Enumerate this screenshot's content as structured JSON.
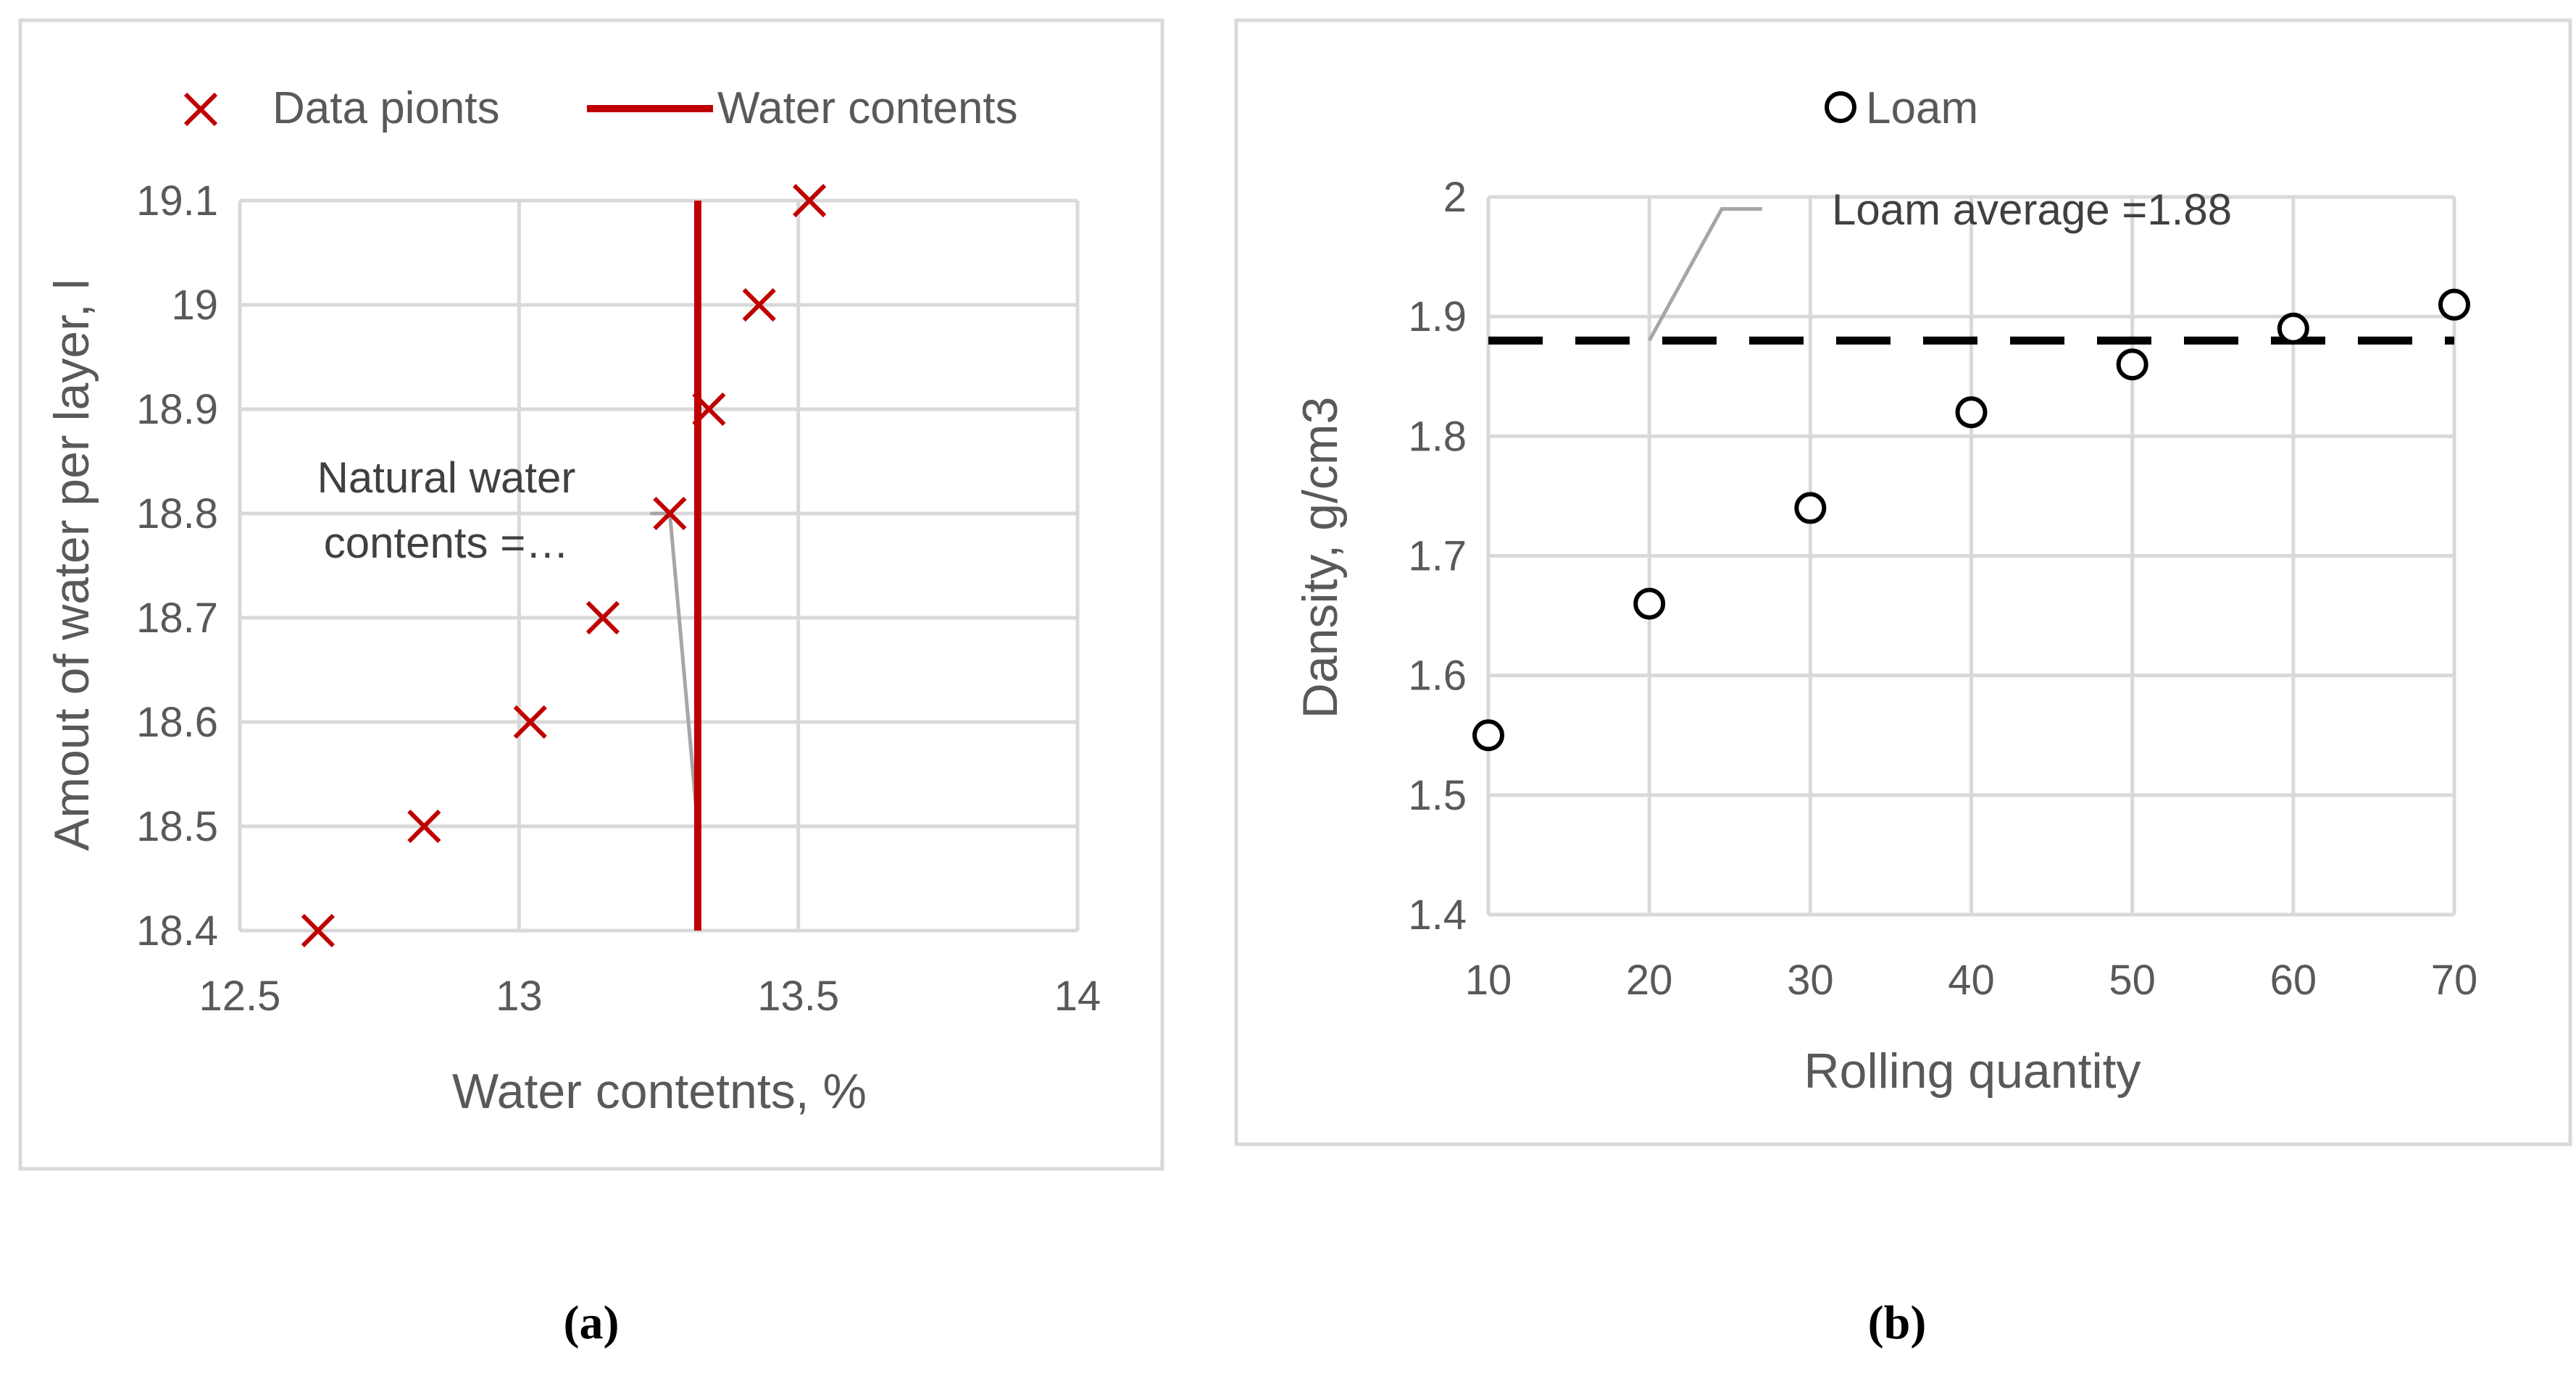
{
  "chart_data": [
    {
      "panel": "(a)",
      "type": "scatter",
      "xlabel": "Water contetnts, %",
      "ylabel": "Amout of water per layer, l",
      "xlim": [
        12.5,
        14
      ],
      "ylim": [
        18.4,
        19.1
      ],
      "x_ticks": [
        "12.5",
        "13",
        "13.5",
        "14"
      ],
      "y_ticks": [
        "18.4",
        "18.5",
        "18.6",
        "18.7",
        "18.8",
        "18.9",
        "19",
        "19.1"
      ],
      "grid": true,
      "legend_position": "top",
      "series": [
        {
          "name": "Data pionts",
          "marker": "x",
          "color": "#C00000",
          "x": [
            12.64,
            12.83,
            13.02,
            13.15,
            13.27,
            13.34,
            13.43,
            13.52
          ],
          "y": [
            18.4,
            18.5,
            18.6,
            18.7,
            18.8,
            18.9,
            19.0,
            19.1
          ]
        },
        {
          "name": "Water contents",
          "type": "vertical-line",
          "color": "#C00000",
          "x": 13.32
        }
      ],
      "annotation": {
        "line1": "Natural water",
        "line2": "contents =…"
      }
    },
    {
      "panel": "(b)",
      "type": "scatter",
      "xlabel": "Rolling quantity",
      "ylabel": "Dansity, g/cm3",
      "xlim": [
        10,
        70
      ],
      "ylim": [
        1.4,
        2
      ],
      "x_ticks": [
        "10",
        "20",
        "30",
        "40",
        "50",
        "60",
        "70"
      ],
      "y_ticks": [
        "1.4",
        "1.5",
        "1.6",
        "1.7",
        "1.8",
        "1.9",
        "2"
      ],
      "grid": true,
      "legend_position": "top",
      "series": [
        {
          "name": "Loam",
          "marker": "open-circle",
          "color": "#000000",
          "x": [
            10,
            20,
            30,
            40,
            50,
            60,
            70
          ],
          "y": [
            1.55,
            1.66,
            1.74,
            1.82,
            1.86,
            1.89,
            1.91
          ]
        },
        {
          "type": "horizontal-dashed-line",
          "color": "#000000",
          "y": 1.88
        }
      ],
      "annotation": {
        "text": "Loam average =1.88"
      }
    }
  ]
}
